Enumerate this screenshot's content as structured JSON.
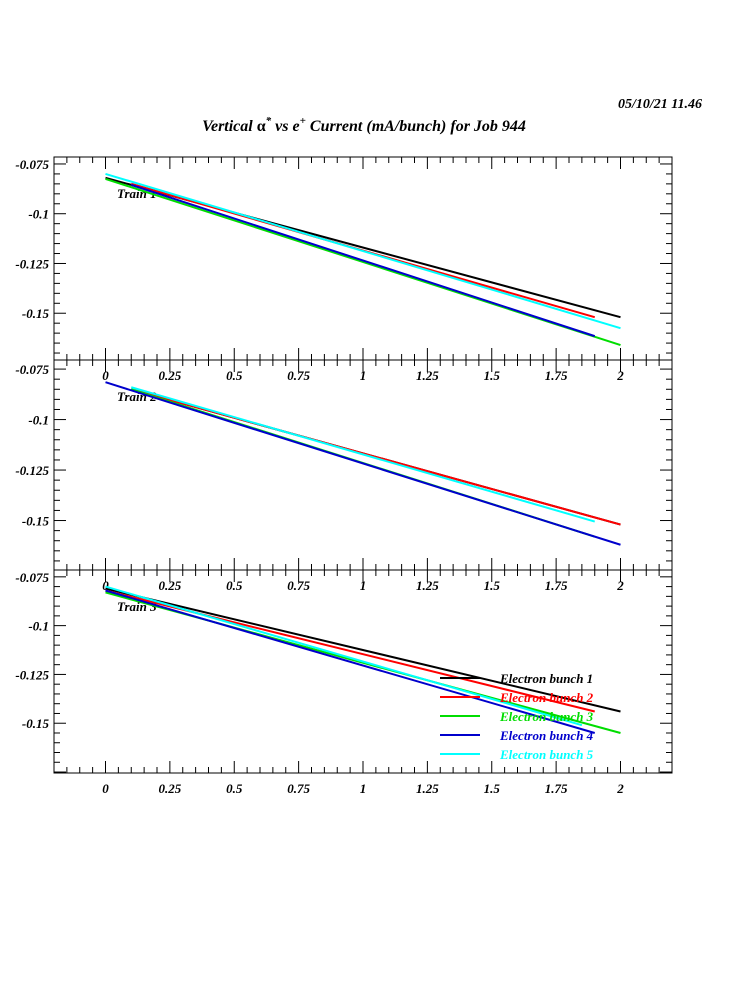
{
  "timestamp": "05/10/21   11.46",
  "title_parts": {
    "pre": "Vertical ",
    "alpha": "α",
    "star": "*",
    "mid": " vs e",
    "plus": "+",
    "post": " Current (mA/bunch) for Job 944"
  },
  "colors": {
    "Electron bunch 1": "#000000",
    "Electron bunch 2": "#ff0000",
    "Electron bunch 3": "#00dd00",
    "Electron bunch 4": "#0000cc",
    "Electron bunch 5": "#00ffff"
  },
  "chart_data": [
    {
      "type": "line",
      "panel_label": "Train 1",
      "xlim": [
        -0.2,
        2.2
      ],
      "ylim": [
        -0.1735,
        -0.0715
      ],
      "xticks": [
        "0",
        "0.25",
        "0.5",
        "0.75",
        "1",
        "1.25",
        "1.5",
        "1.75",
        "2"
      ],
      "yticks": [
        "-0.075",
        "-0.1",
        "-0.125",
        "-0.15"
      ],
      "series": [
        {
          "name": "Electron bunch 1",
          "x": [
            0,
            2
          ],
          "y": [
            -0.082,
            -0.152
          ]
        },
        {
          "name": "Electron bunch 2",
          "x": [
            0.1,
            1.9
          ],
          "y": [
            -0.085,
            -0.152
          ]
        },
        {
          "name": "Electron bunch 3",
          "x": [
            0,
            2
          ],
          "y": [
            -0.0825,
            -0.166
          ]
        },
        {
          "name": "Electron bunch 4",
          "x": [
            0.1,
            1.9
          ],
          "y": [
            -0.0855,
            -0.1615
          ]
        },
        {
          "name": "Electron bunch 5",
          "x": [
            0,
            2
          ],
          "y": [
            -0.08,
            -0.1575
          ]
        }
      ]
    },
    {
      "type": "line",
      "panel_label": "Train 2",
      "xlim": [
        -0.2,
        2.2
      ],
      "ylim": [
        -0.1745,
        -0.0705
      ],
      "xticks": [
        "0",
        "0.25",
        "0.5",
        "0.75",
        "1",
        "1.25",
        "1.5",
        "1.75",
        "2"
      ],
      "yticks": [
        "-0.075",
        "-0.1",
        "-0.125",
        "-0.15"
      ],
      "series": [
        {
          "name": "Electron bunch 1",
          "x": [
            0.1,
            2
          ],
          "y": [
            -0.085,
            -0.152
          ]
        },
        {
          "name": "Electron bunch 2",
          "x": [
            0.1,
            2
          ],
          "y": [
            -0.085,
            -0.152
          ]
        },
        {
          "name": "Electron bunch 3",
          "x": [
            0.1,
            1.9
          ],
          "y": [
            -0.085,
            -0.158
          ]
        },
        {
          "name": "Electron bunch 4",
          "x": [
            0,
            2
          ],
          "y": [
            -0.0815,
            -0.162
          ]
        },
        {
          "name": "Electron bunch 5",
          "x": [
            0.1,
            1.9
          ],
          "y": [
            -0.084,
            -0.1505
          ]
        }
      ]
    },
    {
      "type": "line",
      "panel_label": "Train 3",
      "xlim": [
        -0.2,
        2.2
      ],
      "ylim": [
        -0.1755,
        -0.0715
      ],
      "xticks": [
        "0",
        "0.25",
        "0.5",
        "0.75",
        "1",
        "1.25",
        "1.5",
        "1.75",
        "2"
      ],
      "yticks": [
        "-0.075",
        "-0.1",
        "-0.125",
        "-0.15"
      ],
      "legend": "bottom-right",
      "series": [
        {
          "name": "Electron bunch 1",
          "x": [
            0,
            2
          ],
          "y": [
            -0.081,
            -0.144
          ]
        },
        {
          "name": "Electron bunch 2",
          "x": [
            0,
            1.9
          ],
          "y": [
            -0.082,
            -0.144
          ]
        },
        {
          "name": "Electron bunch 3",
          "x": [
            0,
            2
          ],
          "y": [
            -0.083,
            -0.155
          ]
        },
        {
          "name": "Electron bunch 4",
          "x": [
            0,
            1.9
          ],
          "y": [
            -0.082,
            -0.155
          ]
        },
        {
          "name": "Electron bunch 5",
          "x": [
            0,
            1.85
          ],
          "y": [
            -0.08,
            -0.151
          ]
        }
      ]
    }
  ]
}
